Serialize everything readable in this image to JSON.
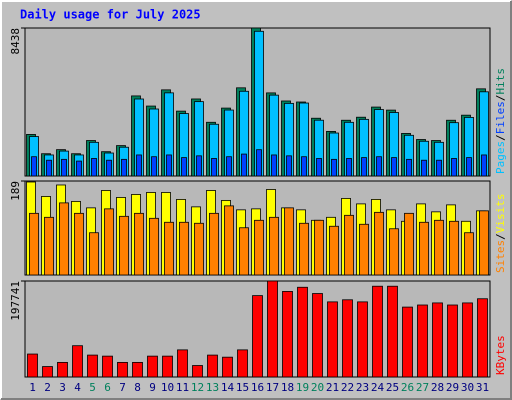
{
  "chart_data": [
    {
      "type": "bar",
      "title": "Daily usage for July 2025",
      "legend_separator": "/",
      "ylim": [
        0,
        8438
      ],
      "yticks": [
        8438
      ],
      "series": [
        {
          "name": "Hits",
          "color": "#00805c",
          "values": [
            2370,
            1271,
            1503,
            1271,
            2023,
            1387,
            1734,
            4566,
            3988,
            4912,
            3699,
            4392,
            3063,
            3872,
            5028,
            8438,
            4739,
            4277,
            4219,
            3294,
            2543,
            3179,
            3352,
            3930,
            3757,
            2427,
            2081,
            2023,
            3179,
            3468,
            4970
          ]
        },
        {
          "name": "Files",
          "color": "#0040ff",
          "values": [
            1100,
            900,
            950,
            850,
            1000,
            900,
            950,
            1200,
            1100,
            1200,
            1050,
            1150,
            1000,
            1100,
            1250,
            1500,
            1200,
            1150,
            1100,
            1000,
            950,
            1000,
            1050,
            1100,
            1050,
            950,
            900,
            900,
            1000,
            1050,
            1200
          ]
        },
        {
          "name": "Pages",
          "color": "#00c0ff",
          "values": [
            2250,
            1200,
            1420,
            1200,
            1920,
            1310,
            1640,
            4390,
            3820,
            4740,
            3560,
            4240,
            2950,
            3760,
            4830,
            8250,
            4610,
            4140,
            4160,
            3180,
            2450,
            3060,
            3230,
            3790,
            3620,
            2320,
            1980,
            1920,
            3040,
            3340,
            4800
          ]
        }
      ]
    },
    {
      "type": "bar",
      "legend_separator": "/",
      "ylim": [
        0,
        189
      ],
      "yticks": [
        189
      ],
      "series": [
        {
          "name": "Visits",
          "color": "#ffff00",
          "values": [
            187,
            158,
            181,
            148,
            135,
            170,
            156,
            162,
            166,
            166,
            152,
            137,
            170,
            150,
            131,
            133,
            172,
            135,
            131,
            110,
            116,
            154,
            143,
            152,
            131,
            108,
            143,
            127,
            141,
            108,
            129
          ]
        },
        {
          "name": "Sites",
          "color": "#ff8000",
          "values": [
            124,
            116,
            145,
            124,
            85,
            133,
            118,
            124,
            114,
            106,
            106,
            104,
            124,
            139,
            95,
            110,
            116,
            135,
            104,
            110,
            98,
            120,
            102,
            126,
            93,
            124,
            106,
            110,
            108,
            85,
            129
          ]
        }
      ]
    },
    {
      "type": "bar",
      "ylim": [
        0,
        197741
      ],
      "yticks": [
        197741
      ],
      "categories": [
        "1",
        "2",
        "3",
        "4",
        "5",
        "6",
        "7",
        "8",
        "9",
        "10",
        "11",
        "12",
        "13",
        "14",
        "15",
        "16",
        "17",
        "18",
        "19",
        "20",
        "21",
        "22",
        "23",
        "24",
        "25",
        "26",
        "27",
        "28",
        "29",
        "30",
        "31"
      ],
      "category_colors": [
        "#000080",
        "#000080",
        "#000080",
        "#000080",
        "#00805c",
        "#00805c",
        "#000080",
        "#000080",
        "#000080",
        "#000080",
        "#000080",
        "#00805c",
        "#00805c",
        "#000080",
        "#000080",
        "#000080",
        "#000080",
        "#000080",
        "#00805c",
        "#00805c",
        "#000080",
        "#000080",
        "#000080",
        "#000080",
        "#000080",
        "#00805c",
        "#00805c",
        "#000080",
        "#000080",
        "#000080",
        "#000080"
      ],
      "series": [
        {
          "name": "KBytes",
          "color": "#ff0000",
          "values": [
            47287,
            21494,
            30091,
            64481,
            45137,
            42987,
            30091,
            30091,
            42987,
            42987,
            55884,
            23643,
            45137,
            40838,
            55884,
            167650,
            197741,
            176247,
            184844,
            171949,
            154754,
            159053,
            154754,
            186994,
            186994,
            144007,
            148306,
            152604,
            148306,
            152604,
            161202
          ]
        }
      ]
    }
  ]
}
